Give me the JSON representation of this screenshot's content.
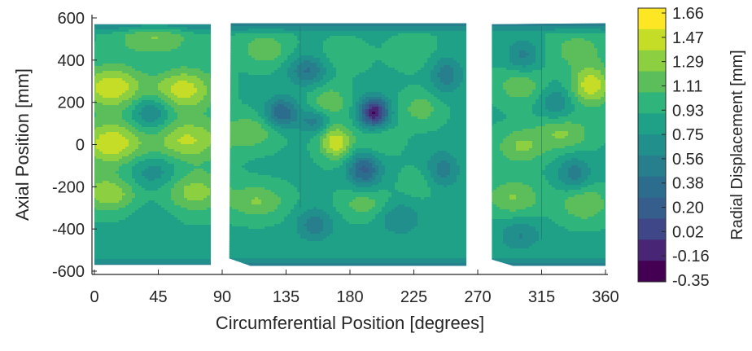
{
  "chart_data": {
    "type": "heatmap",
    "title": "",
    "xlabel": "Circumferential Position [degrees]",
    "ylabel": "Axial Position [mm]",
    "xlim": [
      0,
      360
    ],
    "ylim": [
      -600,
      600
    ],
    "x_ticks": [
      0,
      45,
      90,
      135,
      180,
      225,
      270,
      315,
      360
    ],
    "y_ticks": [
      600,
      400,
      200,
      0,
      -200,
      -400,
      -600
    ],
    "grid": false,
    "colorbar": {
      "label": "Radial Displacement [mm]",
      "levels": [
        "1.66",
        "1.47",
        "1.29",
        "1.11",
        "0.93",
        "0.75",
        "0.56",
        "0.38",
        "0.20",
        "0.02",
        "-0.16",
        "-0.35"
      ],
      "colors": [
        "#fde725",
        "#c5dd26",
        "#8ccf40",
        "#5bbe5b",
        "#2fb47c",
        "#1fa187",
        "#21908d",
        "#277f8e",
        "#2c6d8e",
        "#355e8d",
        "#3f4788",
        "#482575",
        "#440154"
      ]
    },
    "panels": [
      {
        "name": "panel-1",
        "x_range": [
          0,
          82
        ],
        "y_range": [
          -570,
          570
        ]
      },
      {
        "name": "panel-2",
        "x_range": [
          96,
          262
        ],
        "y_range": [
          -575,
          575
        ]
      },
      {
        "name": "panel-3",
        "x_range": [
          280,
          360
        ],
        "y_range": [
          -575,
          575
        ]
      }
    ],
    "features": [
      {
        "x": 12,
        "y": 270,
        "value": 1.62,
        "sx": 16,
        "sy": 70
      },
      {
        "x": 62,
        "y": 260,
        "value": 1.58,
        "sx": 16,
        "sy": 70
      },
      {
        "x": 12,
        "y": 5,
        "value": 1.62,
        "sx": 16,
        "sy": 75
      },
      {
        "x": 65,
        "y": 20,
        "value": 1.5,
        "sx": 18,
        "sy": 70
      },
      {
        "x": 10,
        "y": -230,
        "value": 1.45,
        "sx": 14,
        "sy": 60
      },
      {
        "x": 70,
        "y": -220,
        "value": 1.38,
        "sx": 16,
        "sy": 70
      },
      {
        "x": 42,
        "y": 500,
        "value": 1.3,
        "sx": 18,
        "sy": 60
      },
      {
        "x": 40,
        "y": 150,
        "value": 0.45,
        "sx": 10,
        "sy": 65
      },
      {
        "x": 42,
        "y": -130,
        "value": 0.58,
        "sx": 14,
        "sy": 60
      },
      {
        "x": 45,
        "y": 380,
        "value": 0.8,
        "sx": 10,
        "sy": 55
      },
      {
        "x": 40,
        "y": -350,
        "value": 0.75,
        "sx": 10,
        "sy": 60
      },
      {
        "x": 120,
        "y": 450,
        "value": 1.25,
        "sx": 12,
        "sy": 55
      },
      {
        "x": 110,
        "y": 60,
        "value": 1.25,
        "sx": 14,
        "sy": 55
      },
      {
        "x": 115,
        "y": -270,
        "value": 1.3,
        "sx": 14,
        "sy": 55
      },
      {
        "x": 132,
        "y": 150,
        "value": 0.2,
        "sx": 8,
        "sy": 50
      },
      {
        "x": 150,
        "y": 350,
        "value": 0.35,
        "sx": 9,
        "sy": 50
      },
      {
        "x": 170,
        "y": 10,
        "value": 1.62,
        "sx": 8,
        "sy": 55
      },
      {
        "x": 165,
        "y": 200,
        "value": 1.25,
        "sx": 10,
        "sy": 60
      },
      {
        "x": 197,
        "y": 150,
        "value": -0.38,
        "sx": 7,
        "sy": 50
      },
      {
        "x": 190,
        "y": -120,
        "value": 0.15,
        "sx": 8,
        "sy": 55
      },
      {
        "x": 200,
        "y": 30,
        "value": 1.15,
        "sx": 10,
        "sy": 55
      },
      {
        "x": 190,
        "y": -280,
        "value": 1.2,
        "sx": 12,
        "sy": 50
      },
      {
        "x": 175,
        "y": 420,
        "value": 1.05,
        "sx": 12,
        "sy": 55
      },
      {
        "x": 230,
        "y": 170,
        "value": 1.2,
        "sx": 10,
        "sy": 55
      },
      {
        "x": 225,
        "y": 440,
        "value": 1.05,
        "sx": 12,
        "sy": 60
      },
      {
        "x": 230,
        "y": -180,
        "value": 1.05,
        "sx": 10,
        "sy": 55
      },
      {
        "x": 155,
        "y": -380,
        "value": 0.45,
        "sx": 9,
        "sy": 55
      },
      {
        "x": 215,
        "y": -350,
        "value": 0.55,
        "sx": 10,
        "sy": 55
      },
      {
        "x": 248,
        "y": 330,
        "value": 0.45,
        "sx": 8,
        "sy": 60
      },
      {
        "x": 245,
        "y": -120,
        "value": 0.45,
        "sx": 8,
        "sy": 60
      },
      {
        "x": 155,
        "y": 110,
        "value": 0.45,
        "sx": 8,
        "sy": 40
      },
      {
        "x": 300,
        "y": 280,
        "value": 1.25,
        "sx": 12,
        "sy": 60
      },
      {
        "x": 300,
        "y": -10,
        "value": 1.3,
        "sx": 12,
        "sy": 60
      },
      {
        "x": 295,
        "y": -250,
        "value": 1.3,
        "sx": 14,
        "sy": 60
      },
      {
        "x": 350,
        "y": 280,
        "value": 1.6,
        "sx": 10,
        "sy": 65
      },
      {
        "x": 330,
        "y": 50,
        "value": 1.3,
        "sx": 14,
        "sy": 55
      },
      {
        "x": 345,
        "y": -280,
        "value": 1.3,
        "sx": 12,
        "sy": 60
      },
      {
        "x": 340,
        "y": 450,
        "value": 1.2,
        "sx": 14,
        "sy": 60
      },
      {
        "x": 338,
        "y": -140,
        "value": 0.45,
        "sx": 8,
        "sy": 55
      },
      {
        "x": 302,
        "y": 420,
        "value": 0.5,
        "sx": 8,
        "sy": 55
      },
      {
        "x": 325,
        "y": 200,
        "value": 0.55,
        "sx": 8,
        "sy": 50
      },
      {
        "x": 300,
        "y": -430,
        "value": 0.55,
        "sx": 10,
        "sy": 50
      }
    ]
  }
}
